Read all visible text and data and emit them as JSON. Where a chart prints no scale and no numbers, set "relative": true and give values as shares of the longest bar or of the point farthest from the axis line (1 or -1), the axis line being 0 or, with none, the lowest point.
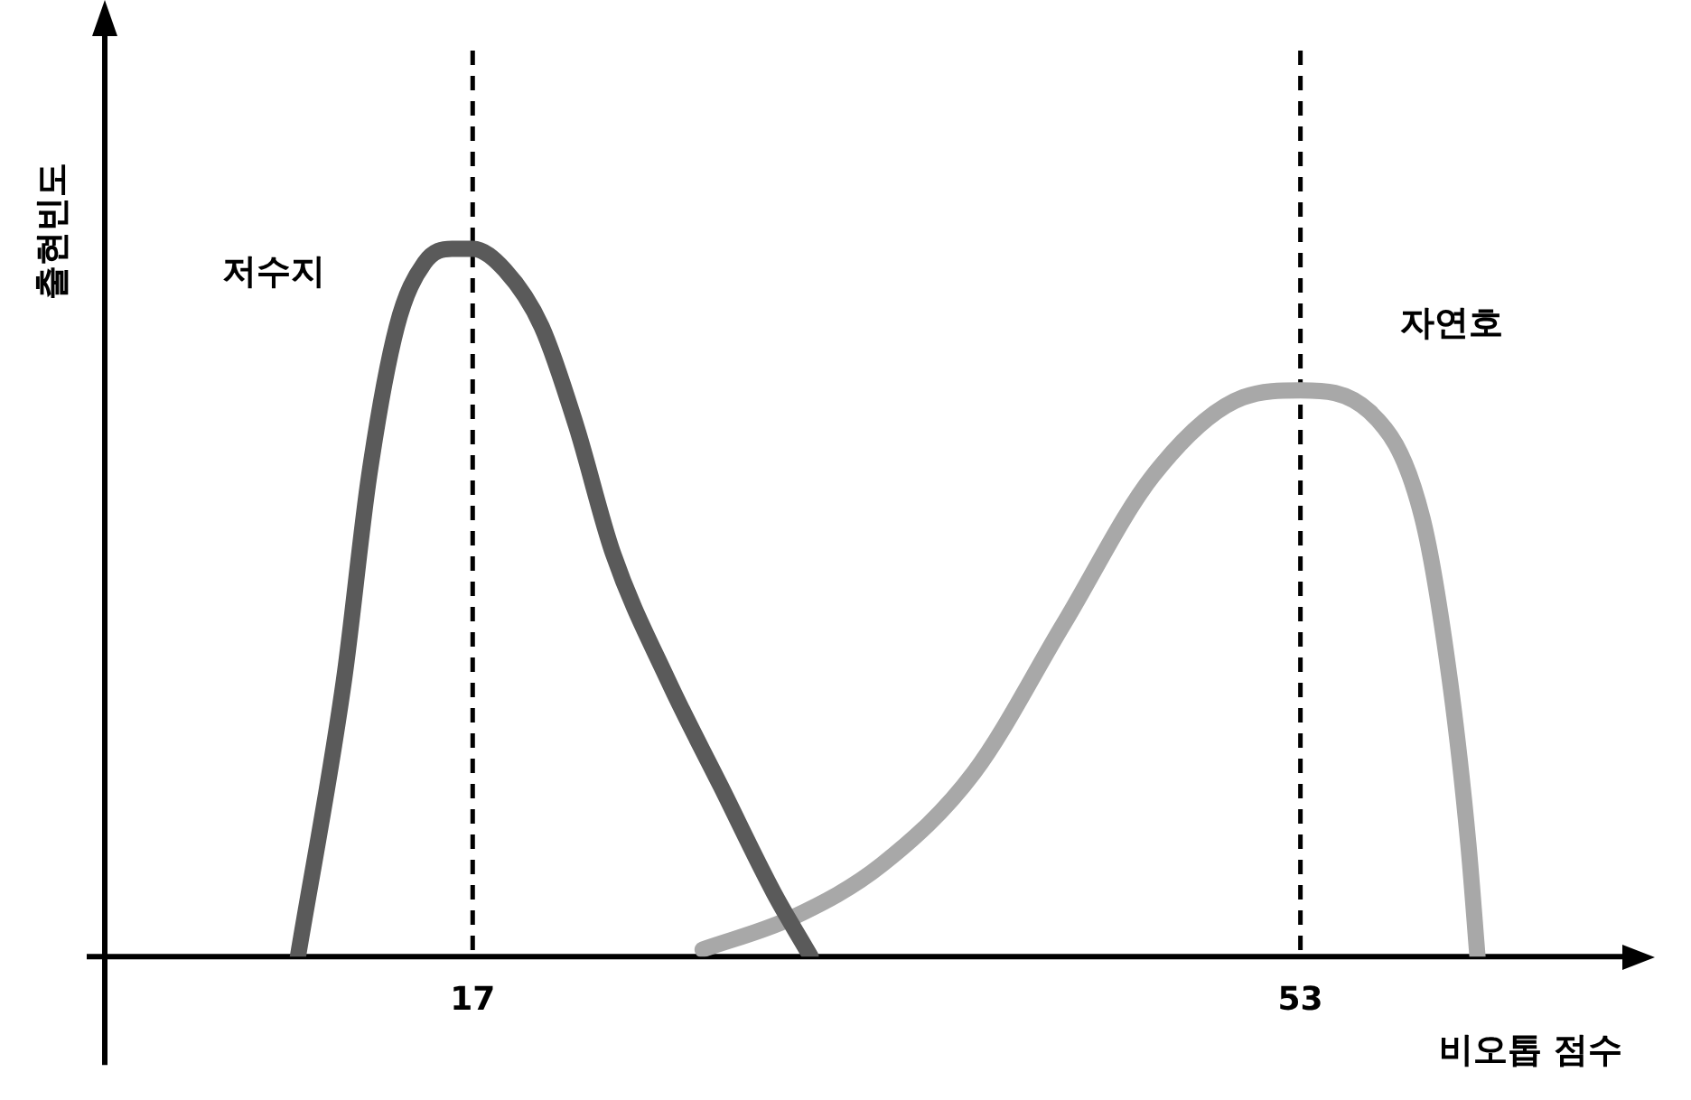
{
  "chart_data": {
    "type": "line",
    "relative": true,
    "xlabel": "비오톱 점수",
    "ylabel": "출현빈도",
    "xlim": [
      1,
      67
    ],
    "xticks": [
      17,
      53
    ],
    "grid": false,
    "legend": false,
    "marker": "none",
    "line_style": "solid",
    "series": [
      {
        "name": "저수지",
        "color": "#5a5a5a",
        "x": [
          9.4,
          11.4,
          12.5,
          13.7,
          14.9,
          16.1,
          17,
          18.4,
          20,
          21.5,
          23.1,
          25.5,
          27.8,
          30.1,
          31.7
        ],
        "values": [
          0,
          0.39,
          0.68,
          0.89,
          0.98,
          1,
          1,
          0.97,
          0.89,
          0.75,
          0.57,
          0.39,
          0.24,
          0.09,
          0
        ]
      },
      {
        "name": "자연호",
        "color": "#a8a8a8",
        "x": [
          27,
          30.9,
          34.8,
          38.8,
          42.7,
          46.6,
          50.5,
          53,
          56,
          58.3,
          59.5,
          60.3,
          60.7
        ],
        "values": [
          0.01,
          0.055,
          0.13,
          0.26,
          0.47,
          0.68,
          0.79,
          0.8,
          0.77,
          0.62,
          0.39,
          0.16,
          0
        ]
      }
    ],
    "ref_lines": [
      {
        "axis": "x",
        "value": 17,
        "line_style": "dashed",
        "color": "#000000"
      },
      {
        "axis": "x",
        "value": 53,
        "line_style": "dashed",
        "color": "#000000"
      }
    ]
  }
}
